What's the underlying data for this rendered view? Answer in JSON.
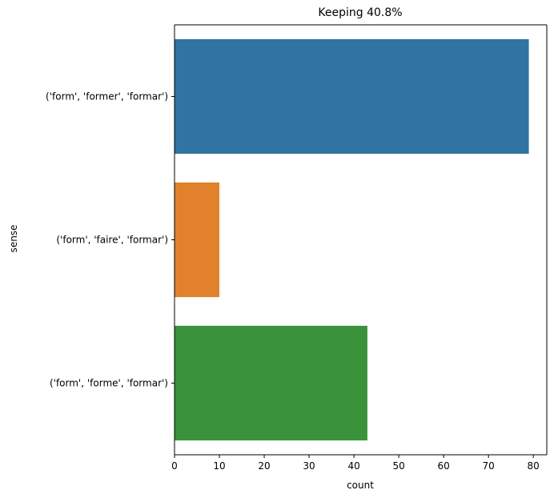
{
  "chart_data": {
    "type": "bar",
    "orientation": "horizontal",
    "title": "Keeping 40.8%",
    "xlabel": "count",
    "ylabel": "sense",
    "categories": [
      "('form', 'former', 'formar')",
      "('form', 'faire', 'formar')",
      "('form', 'forme', 'formar')"
    ],
    "values": [
      79,
      10,
      43
    ],
    "colors": [
      "#3274a1",
      "#e1812c",
      "#3a923a"
    ],
    "xlim": [
      0,
      83
    ],
    "xticks": [
      0,
      10,
      20,
      30,
      40,
      50,
      60,
      70,
      80
    ],
    "grid": false,
    "legend": "none"
  }
}
